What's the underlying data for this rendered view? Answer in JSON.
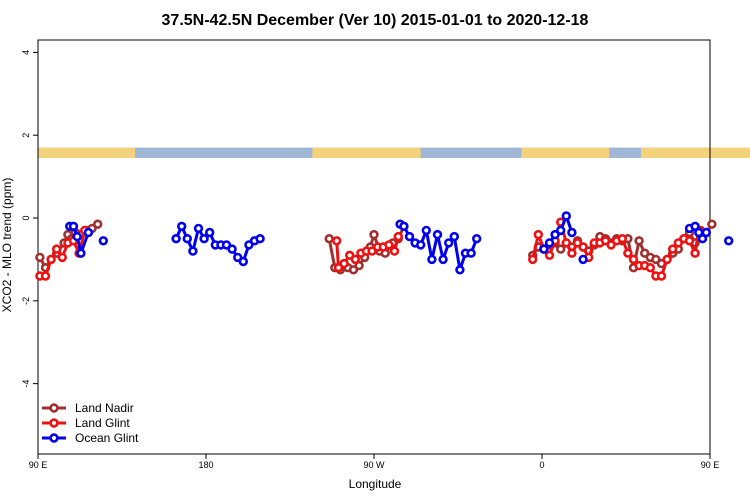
{
  "chart_data": {
    "type": "line",
    "title": "37.5N-42.5N December (Ver 10)   2015-01-01 to 2020-12-18",
    "xlabel": "Longitude",
    "ylabel": "XCO2 - MLO trend (ppm)",
    "xlim": [
      90,
      450
    ],
    "ylim": [
      -5.7,
      4.3
    ],
    "x_ticks": [
      {
        "value": 90,
        "label": "90 E"
      },
      {
        "value": 180,
        "label": "180"
      },
      {
        "value": 270,
        "label": "90 W"
      },
      {
        "value": 360,
        "label": "0"
      },
      {
        "value": 450,
        "label": "90 E"
      },
      {
        "value": 540,
        "label": "180"
      }
    ],
    "y_ticks": [
      {
        "value": 4,
        "label": "4"
      },
      {
        "value": 2,
        "label": "2"
      },
      {
        "value": 0,
        "label": "0"
      },
      {
        "value": -2,
        "label": "-2"
      },
      {
        "value": -4,
        "label": "-4"
      }
    ],
    "land_strip": {
      "y_range": [
        1.45,
        1.7
      ],
      "ocean_color": "#9fb6d6",
      "land_color": "#f2d27a",
      "land_segments": [
        [
          90,
          142
        ],
        [
          237,
          295
        ],
        [
          349,
          396
        ],
        [
          413,
          483
        ]
      ]
    },
    "legend_position": "bottom-left",
    "series": [
      {
        "name": "Land Nadir",
        "color": "#a03030",
        "segments": [
          [
            [
              91,
              -0.95
            ],
            [
              94,
              -1.2
            ],
            [
              97,
              -1.0
            ],
            [
              100,
              -0.85
            ],
            [
              104,
              -0.6
            ],
            [
              106,
              -0.4
            ],
            [
              108,
              -0.5
            ],
            [
              110,
              -0.35
            ],
            [
              113,
              -0.4
            ],
            [
              116,
              -0.3
            ],
            [
              119,
              -0.25
            ],
            [
              122,
              -0.15
            ]
          ],
          [
            [
              246,
              -0.5
            ],
            [
              249,
              -1.2
            ],
            [
              252,
              -1.25
            ],
            [
              256,
              -1.2
            ],
            [
              259,
              -1.25
            ],
            [
              262,
              -1.15
            ],
            [
              265,
              -0.95
            ],
            [
              268,
              -0.7
            ],
            [
              270,
              -0.4
            ],
            [
              273,
              -0.8
            ],
            [
              276,
              -0.85
            ],
            [
              280,
              -0.6
            ],
            [
              283,
              -0.5
            ],
            [
              286,
              -0.2
            ]
          ],
          [
            [
              355,
              -0.9
            ],
            [
              358,
              -0.7
            ],
            [
              361,
              -0.75
            ],
            [
              364,
              -0.65
            ],
            [
              367,
              -0.6
            ],
            [
              370,
              -0.75
            ],
            [
              373,
              -0.6
            ],
            [
              376,
              -0.7
            ],
            [
              379,
              -0.55
            ],
            [
              382,
              -0.7
            ],
            [
              385,
              -0.8
            ],
            [
              388,
              -0.65
            ],
            [
              391,
              -0.45
            ],
            [
              394,
              -0.5
            ],
            [
              397,
              -0.6
            ],
            [
              400,
              -0.5
            ],
            [
              403,
              -0.55
            ],
            [
              406,
              -0.5
            ],
            [
              409,
              -1.2
            ],
            [
              412,
              -0.55
            ],
            [
              415,
              -0.85
            ],
            [
              418,
              -0.95
            ],
            [
              421,
              -1.0
            ],
            [
              424,
              -1.1
            ],
            [
              427,
              -1.0
            ],
            [
              430,
              -0.85
            ],
            [
              433,
              -0.75
            ],
            [
              436,
              -0.5
            ],
            [
              439,
              -0.35
            ],
            [
              442,
              -0.6
            ],
            [
              445,
              -0.3
            ],
            [
              448,
              -0.35
            ],
            [
              451,
              -0.15
            ]
          ]
        ]
      },
      {
        "name": "Land Glint",
        "color": "#ee1111",
        "segments": [
          [
            [
              91,
              -1.4
            ],
            [
              94,
              -1.4
            ],
            [
              97,
              -1.0
            ],
            [
              100,
              -0.75
            ],
            [
              103,
              -0.95
            ],
            [
              106,
              -0.6
            ],
            [
              109,
              -0.55
            ],
            [
              112,
              -0.85
            ],
            [
              115,
              -0.3
            ]
          ],
          [
            [
              250,
              -0.55
            ],
            [
              251,
              -1.2
            ],
            [
              254,
              -1.1
            ],
            [
              257,
              -0.9
            ],
            [
              260,
              -1.0
            ],
            [
              263,
              -0.85
            ],
            [
              266,
              -0.8
            ],
            [
              269,
              -0.8
            ],
            [
              272,
              -0.7
            ],
            [
              275,
              -0.7
            ],
            [
              278,
              -0.65
            ],
            [
              281,
              -0.8
            ],
            [
              283,
              -0.45
            ]
          ],
          [
            [
              355,
              -1.0
            ],
            [
              358,
              -0.4
            ],
            [
              361,
              -0.75
            ],
            [
              364,
              -0.9
            ],
            [
              367,
              -0.55
            ],
            [
              370,
              -0.1
            ],
            [
              373,
              -0.6
            ],
            [
              376,
              -0.85
            ],
            [
              379,
              -0.6
            ],
            [
              382,
              -0.7
            ],
            [
              385,
              -0.95
            ],
            [
              388,
              -0.6
            ],
            [
              391,
              -0.6
            ],
            [
              394,
              -0.55
            ],
            [
              397,
              -0.65
            ],
            [
              400,
              -0.55
            ],
            [
              403,
              -0.5
            ],
            [
              406,
              -0.85
            ],
            [
              409,
              -1.0
            ],
            [
              412,
              -1.15
            ],
            [
              415,
              -1.15
            ],
            [
              418,
              -1.2
            ],
            [
              421,
              -1.4
            ],
            [
              424,
              -1.4
            ],
            [
              427,
              -1.0
            ],
            [
              430,
              -0.75
            ],
            [
              433,
              -0.6
            ],
            [
              436,
              -0.5
            ],
            [
              439,
              -0.55
            ],
            [
              442,
              -0.85
            ],
            [
              444,
              -0.3
            ]
          ]
        ]
      },
      {
        "name": "Ocean Glint",
        "color": "#0000ee",
        "segments": [
          [
            [
              107,
              -0.2
            ],
            [
              109,
              -0.2
            ],
            [
              111,
              -0.45
            ],
            [
              113,
              -0.85
            ],
            [
              117,
              -0.35
            ]
          ],
          [
            [
              125,
              -0.55
            ]
          ],
          [
            [
              164,
              -0.5
            ],
            [
              167,
              -0.2
            ],
            [
              170,
              -0.5
            ],
            [
              173,
              -0.8
            ],
            [
              176,
              -0.25
            ],
            [
              179,
              -0.5
            ],
            [
              182,
              -0.35
            ],
            [
              185,
              -0.65
            ],
            [
              188,
              -0.65
            ],
            [
              191,
              -0.65
            ],
            [
              194,
              -0.75
            ],
            [
              197,
              -0.95
            ],
            [
              200,
              -1.05
            ],
            [
              203,
              -0.65
            ],
            [
              206,
              -0.55
            ],
            [
              209,
              -0.5
            ]
          ],
          [
            [
              284,
              -0.15
            ],
            [
              286,
              -0.2
            ],
            [
              289,
              -0.45
            ],
            [
              292,
              -0.6
            ],
            [
              295,
              -0.65
            ],
            [
              298,
              -0.3
            ],
            [
              301,
              -1.0
            ],
            [
              304,
              -0.4
            ],
            [
              307,
              -1.0
            ],
            [
              310,
              -0.6
            ],
            [
              313,
              -0.45
            ],
            [
              316,
              -1.25
            ],
            [
              319,
              -0.85
            ],
            [
              322,
              -0.85
            ],
            [
              325,
              -0.5
            ]
          ],
          [
            [
              361,
              -0.75
            ],
            [
              364,
              -0.6
            ],
            [
              367,
              -0.4
            ],
            [
              370,
              -0.3
            ],
            [
              373,
              0.05
            ],
            [
              376,
              -0.35
            ]
          ],
          [
            [
              382,
              -1.0
            ]
          ],
          [
            [
              439,
              -0.25
            ],
            [
              442,
              -0.2
            ],
            [
              444,
              -0.35
            ],
            [
              446,
              -0.5
            ],
            [
              448,
              -0.35
            ]
          ],
          [
            [
              460,
              -0.55
            ]
          ],
          [
            [
              478,
              -0.5
            ],
            [
              481,
              -0.2
            ],
            [
              484,
              -0.5
            ],
            [
              487,
              -0.8
            ]
          ]
        ]
      }
    ]
  }
}
